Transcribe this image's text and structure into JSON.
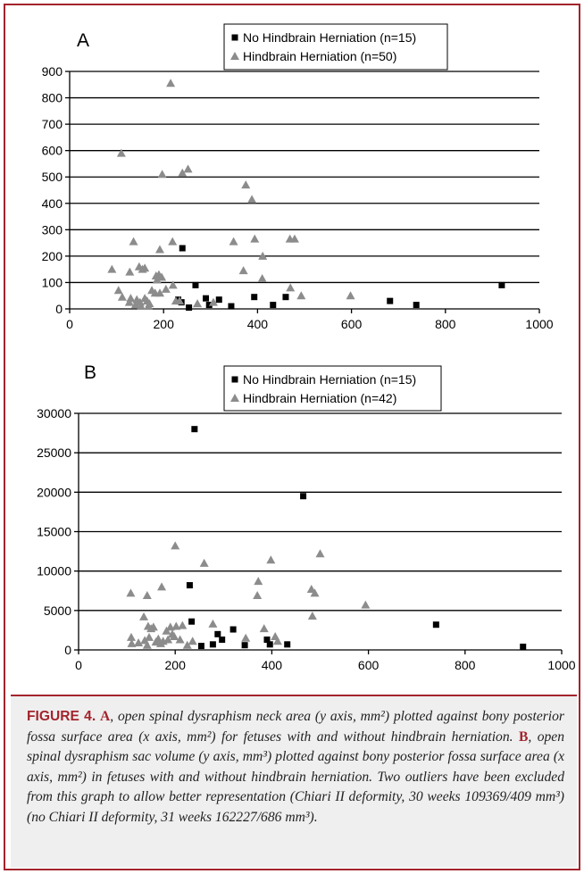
{
  "chart_data": [
    {
      "type": "scatter",
      "panel_label": "A",
      "xlim": [
        0,
        1000
      ],
      "ylim": [
        0,
        900
      ],
      "x_ticks": [
        "0",
        "200",
        "400",
        "600",
        "800",
        "1000"
      ],
      "y_ticks": [
        "0",
        "100",
        "200",
        "300",
        "400",
        "500",
        "600",
        "700",
        "800",
        "900"
      ],
      "grid": "horizontal",
      "legend_position": "top-right",
      "series": [
        {
          "name": "No Hindbrain Herniation (n=15)",
          "marker": "square",
          "color": "#000000",
          "points": [
            [
              240,
              230
            ],
            [
              231,
              35
            ],
            [
              254,
              5
            ],
            [
              268,
              90
            ],
            [
              290,
              40
            ],
            [
              297,
              15
            ],
            [
              318,
              35
            ],
            [
              344,
              10
            ],
            [
              393,
              45
            ],
            [
              433,
              15
            ],
            [
              460,
              45
            ],
            [
              682,
              30
            ],
            [
              738,
              15
            ],
            [
              920,
              90
            ],
            [
              238,
              25
            ]
          ]
        },
        {
          "name": "Hindbrain Herniation (n=50)",
          "marker": "triangle",
          "color": "#8c8c8c",
          "points": [
            [
              110,
              590
            ],
            [
              215,
              855
            ],
            [
              197,
              510
            ],
            [
              240,
              515
            ],
            [
              252,
              530
            ],
            [
              375,
              470
            ],
            [
              388,
              415
            ],
            [
              136,
              255
            ],
            [
              219,
              255
            ],
            [
              192,
              225
            ],
            [
              349,
              255
            ],
            [
              394,
              265
            ],
            [
              469,
              265
            ],
            [
              479,
              265
            ],
            [
              90,
              150
            ],
            [
              128,
              140
            ],
            [
              148,
              160
            ],
            [
              155,
              150
            ],
            [
              160,
              155
            ],
            [
              411,
              200
            ],
            [
              410,
              115
            ],
            [
              370,
              145
            ],
            [
              104,
              70
            ],
            [
              112,
              45
            ],
            [
              127,
              25
            ],
            [
              130,
              40
            ],
            [
              140,
              15
            ],
            [
              143,
              35
            ],
            [
              150,
              25
            ],
            [
              152,
              10
            ],
            [
              160,
              40
            ],
            [
              165,
              30
            ],
            [
              168,
              10
            ],
            [
              170,
              20
            ],
            [
              175,
              70
            ],
            [
              182,
              60
            ],
            [
              184,
              125
            ],
            [
              186,
              110
            ],
            [
              192,
              60
            ],
            [
              196,
              120
            ],
            [
              205,
              75
            ],
            [
              220,
              90
            ],
            [
              226,
              30
            ],
            [
              234,
              30
            ],
            [
              272,
              20
            ],
            [
              306,
              25
            ],
            [
              470,
              80
            ],
            [
              493,
              50
            ],
            [
              598,
              50
            ],
            [
              190,
              130
            ]
          ]
        }
      ]
    },
    {
      "type": "scatter",
      "panel_label": "B",
      "xlim": [
        0,
        1000
      ],
      "ylim": [
        0,
        30000
      ],
      "x_ticks": [
        "0",
        "200",
        "400",
        "600",
        "800",
        "1000"
      ],
      "y_ticks": [
        "0",
        "5000",
        "10000",
        "15000",
        "20000",
        "25000",
        "30000"
      ],
      "grid": "horizontal",
      "legend_position": "top-right",
      "series": [
        {
          "name": "No Hindbrain Herniation (n=15)",
          "marker": "square",
          "color": "#000000",
          "points": [
            [
              240,
              28000
            ],
            [
              465,
              19500
            ],
            [
              230,
              8200
            ],
            [
              234,
              3600
            ],
            [
              740,
              3200
            ],
            [
              320,
              2600
            ],
            [
              288,
              2000
            ],
            [
              297,
              1300
            ],
            [
              278,
              700
            ],
            [
              254,
              500
            ],
            [
              344,
              600
            ],
            [
              396,
              700
            ],
            [
              432,
              700
            ],
            [
              920,
              400
            ],
            [
              390,
              1300
            ]
          ]
        },
        {
          "name": "Hindbrain Herniation (n=42)",
          "marker": "triangle",
          "color": "#8c8c8c",
          "points": [
            [
              200,
              13200
            ],
            [
              500,
              12200
            ],
            [
              398,
              11400
            ],
            [
              260,
              11000
            ],
            [
              372,
              8700
            ],
            [
              108,
              7200
            ],
            [
              172,
              8000
            ],
            [
              142,
              6900
            ],
            [
              370,
              6900
            ],
            [
              482,
              7700
            ],
            [
              489,
              7200
            ],
            [
              594,
              5700
            ],
            [
              484,
              4300
            ],
            [
              135,
              4200
            ],
            [
              144,
              3000
            ],
            [
              109,
              1600
            ],
            [
              110,
              800
            ],
            [
              124,
              900
            ],
            [
              137,
              1200
            ],
            [
              142,
              600
            ],
            [
              146,
              1600
            ],
            [
              150,
              2700
            ],
            [
              155,
              2900
            ],
            [
              160,
              1000
            ],
            [
              165,
              1400
            ],
            [
              170,
              800
            ],
            [
              175,
              1100
            ],
            [
              182,
              2400
            ],
            [
              185,
              1300
            ],
            [
              190,
              2900
            ],
            [
              194,
              2000
            ],
            [
              198,
              1700
            ],
            [
              202,
              3000
            ],
            [
              210,
              1300
            ],
            [
              215,
              3100
            ],
            [
              225,
              600
            ],
            [
              236,
              1100
            ],
            [
              278,
              3300
            ],
            [
              346,
              1500
            ],
            [
              384,
              2700
            ],
            [
              407,
              1700
            ],
            [
              412,
              1100
            ]
          ]
        }
      ]
    }
  ],
  "caption": {
    "label": "FIGURE 4.",
    "ref_a": "A",
    "text_a": ", open spinal dysraphism neck area (y axis, mm²) plotted against bony posterior fossa surface area (x axis, mm²) for fetuses with and without hindbrain herniation. ",
    "ref_b": "B",
    "text_b": ", open spinal dysraphism sac volume (y axis, mm³) plotted against bony posterior fossa surface area (x axis, mm²) in fetuses with and without hindbrain herniation. Two outliers have been excluded from this graph to allow better representation (Chiari II deformity, 30 weeks 109369/409 mm³) (no Chiari II deformity, 31 weeks 162227/686 mm³)."
  }
}
